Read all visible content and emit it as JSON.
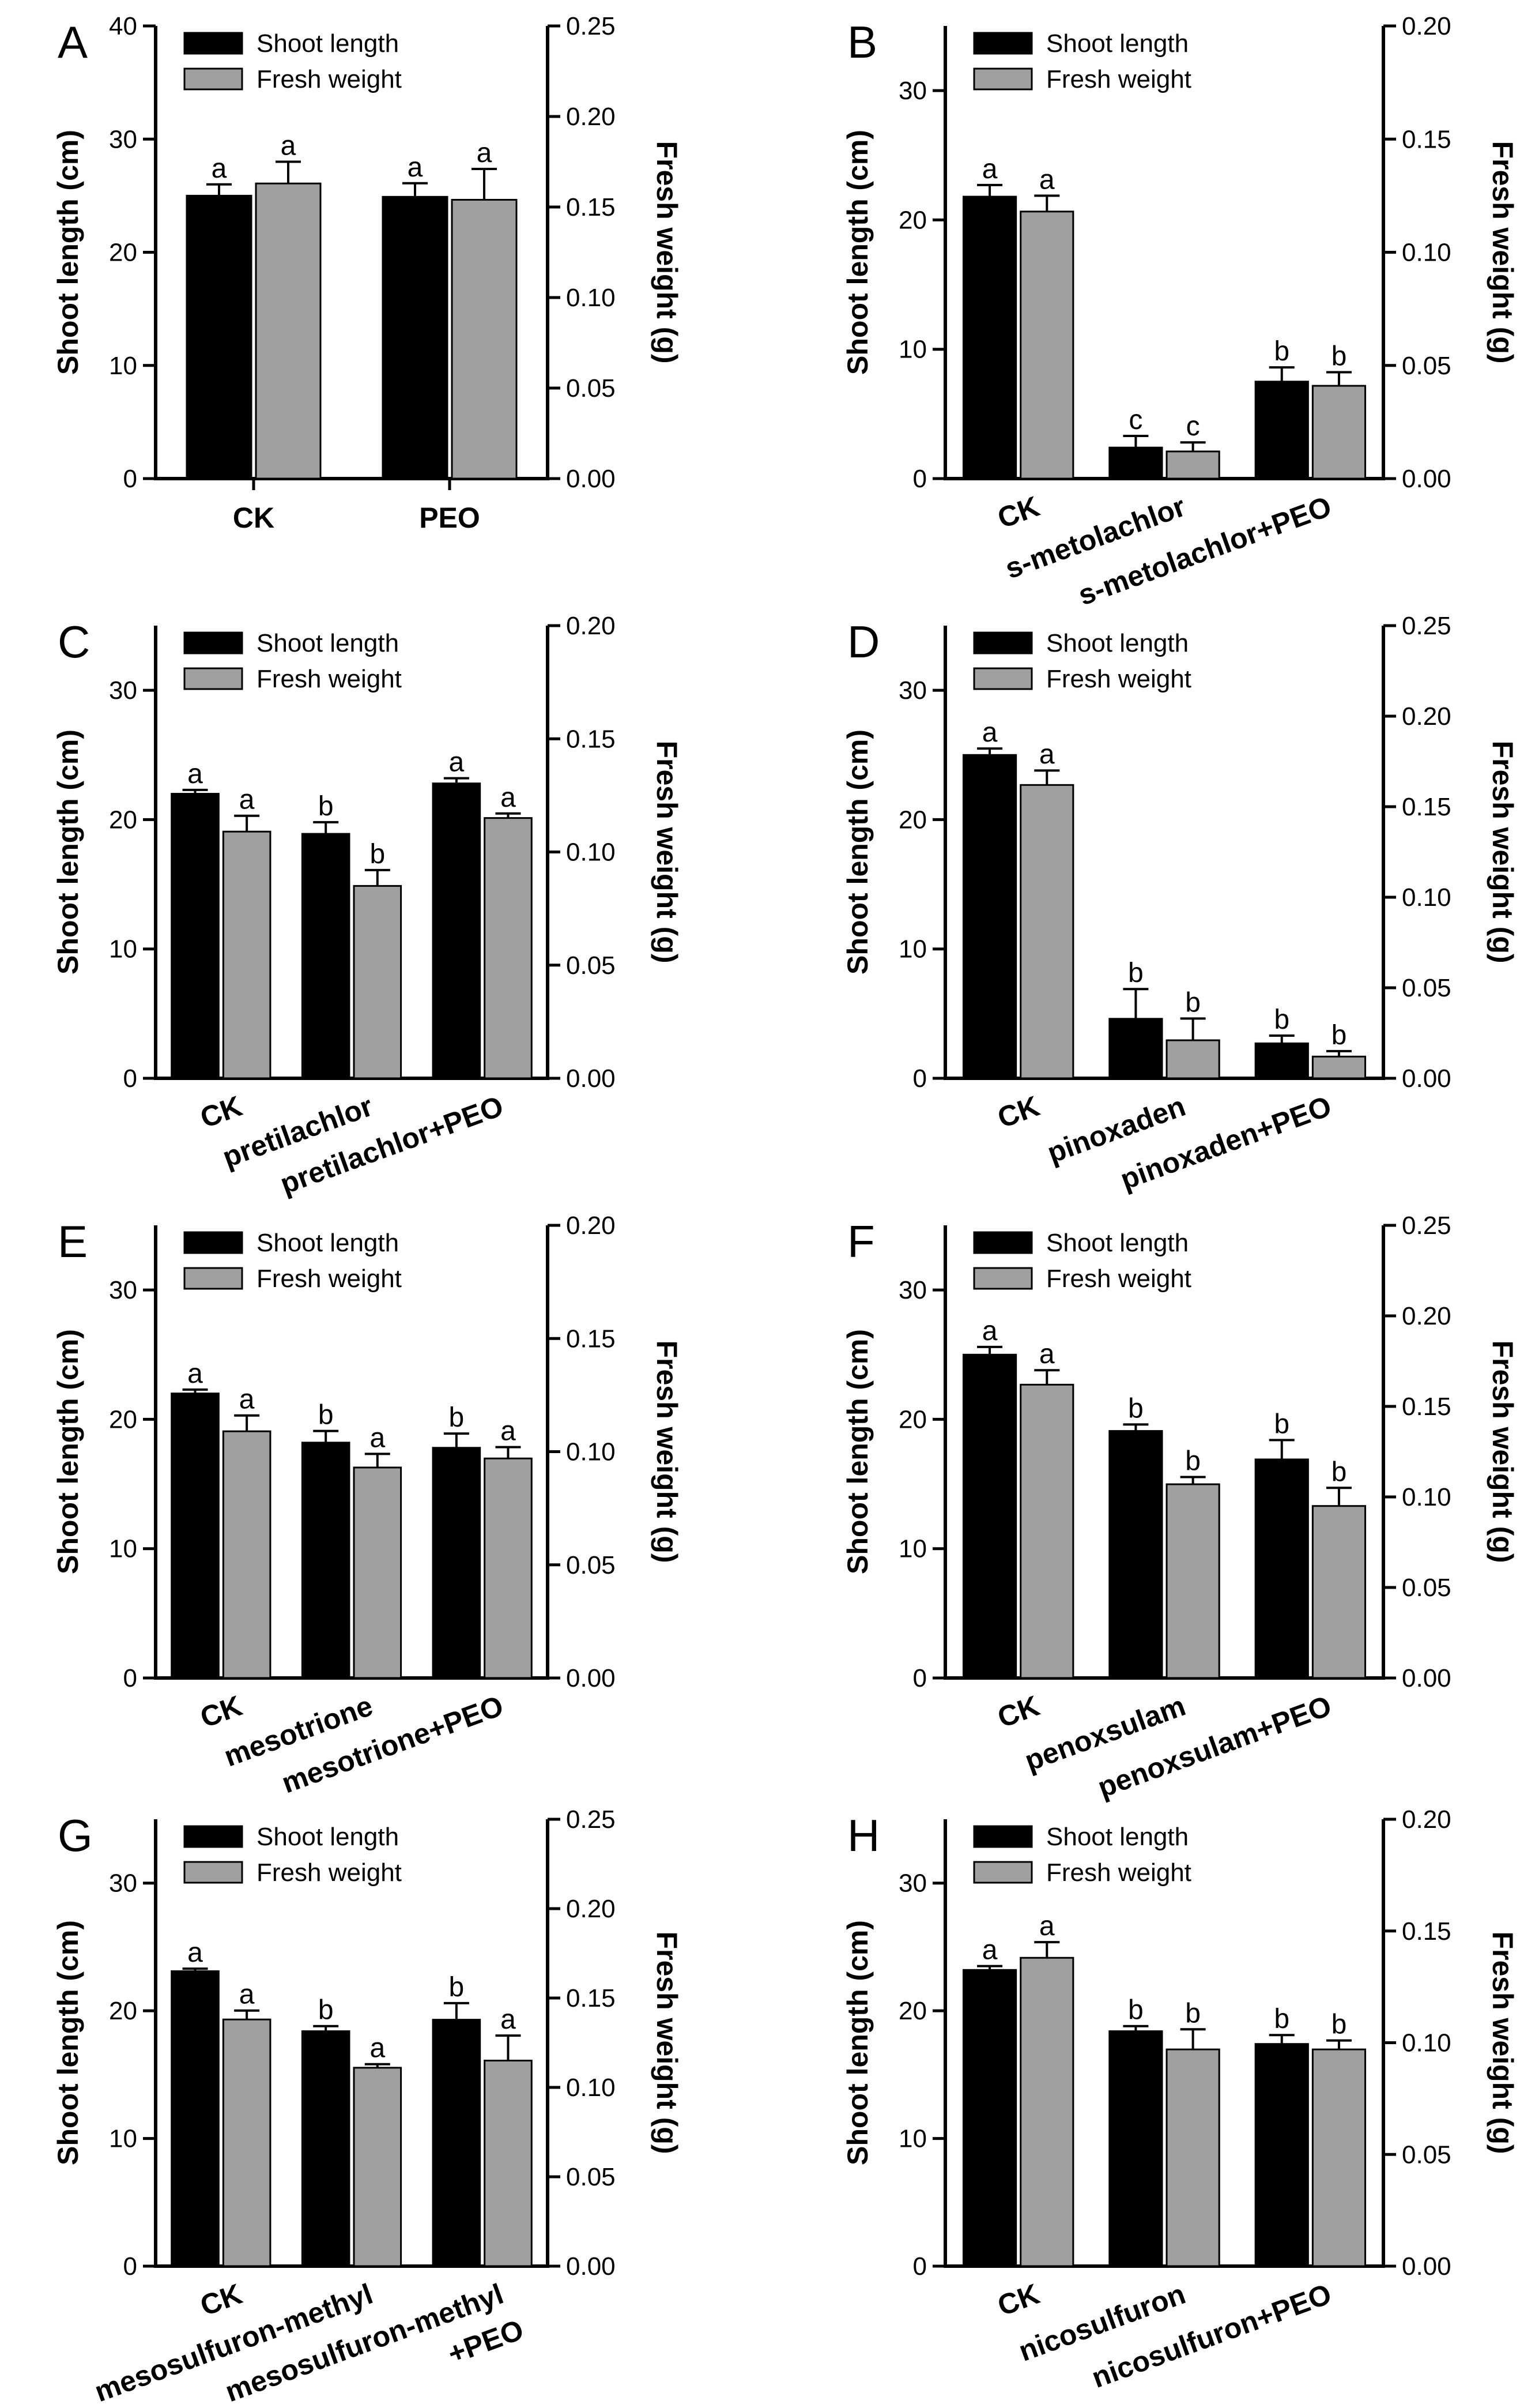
{
  "figure": {
    "legend": {
      "shoot": "Shoot length",
      "fresh": "Fresh weight"
    },
    "colors": {
      "shoot_fill": "#000000",
      "fresh_fill": "#a0a0a0",
      "axis": "#000000"
    }
  },
  "chart_data": [
    {
      "panel": "A",
      "type": "bar",
      "ylabel": "Shoot length (cm)",
      "y2label": "Fresh weight (g)",
      "ylim": [
        0,
        40
      ],
      "y_ticks": [
        0,
        10,
        20,
        30,
        40
      ],
      "y2lim": [
        0,
        0.25
      ],
      "y2_ticks": [
        0,
        0.05,
        0.1,
        0.15,
        0.2,
        0.25
      ],
      "y2_tick_labels": [
        "0.00",
        "0.05",
        "0.10",
        "0.15",
        "0.20",
        "0.25"
      ],
      "rotate_xlabels": false,
      "categories": [
        "CK",
        "PEO"
      ],
      "series": [
        {
          "name": "Shoot length",
          "values": [
            25.0,
            24.9
          ],
          "errors": [
            1.0,
            1.2
          ],
          "letters": [
            "a",
            "a"
          ]
        },
        {
          "name": "Fresh weight",
          "values": [
            0.163,
            0.154
          ],
          "errors": [
            0.012,
            0.017
          ],
          "letters": [
            "a",
            "a"
          ]
        }
      ]
    },
    {
      "panel": "B",
      "type": "bar",
      "ylabel": "Shoot length (cm)",
      "y2label": "Fresh weight (g)",
      "ylim": [
        0,
        35
      ],
      "y_ticks": [
        0,
        10,
        20,
        30
      ],
      "y2lim": [
        0,
        0.2
      ],
      "y2_ticks": [
        0,
        0.05,
        0.1,
        0.15,
        0.2
      ],
      "y2_tick_labels": [
        "0.00",
        "0.05",
        "0.10",
        "0.15",
        "0.20"
      ],
      "rotate_xlabels": true,
      "categories": [
        "CK",
        "s-metolachlor",
        "s-metolachlor+PEO"
      ],
      "series": [
        {
          "name": "Shoot length",
          "values": [
            21.8,
            2.4,
            7.5
          ],
          "errors": [
            0.9,
            0.9,
            1.1
          ],
          "letters": [
            "a",
            "c",
            "b"
          ]
        },
        {
          "name": "Fresh weight",
          "values": [
            0.118,
            0.012,
            0.041
          ],
          "errors": [
            0.007,
            0.004,
            0.006
          ],
          "letters": [
            "a",
            "c",
            "b"
          ]
        }
      ]
    },
    {
      "panel": "C",
      "type": "bar",
      "ylabel": "Shoot length (cm)",
      "y2label": "Fresh weight (g)",
      "ylim": [
        0,
        35
      ],
      "y_ticks": [
        0,
        10,
        20,
        30
      ],
      "y2lim": [
        0,
        0.2
      ],
      "y2_ticks": [
        0,
        0.05,
        0.1,
        0.15,
        0.2
      ],
      "y2_tick_labels": [
        "0.00",
        "0.05",
        "0.10",
        "0.15",
        "0.20"
      ],
      "rotate_xlabels": true,
      "categories": [
        "CK",
        "pretilachlor",
        "pretilachlor+PEO"
      ],
      "series": [
        {
          "name": "Shoot length",
          "values": [
            22.0,
            18.9,
            22.8
          ],
          "errors": [
            0.3,
            0.9,
            0.4
          ],
          "letters": [
            "a",
            "b",
            "a"
          ]
        },
        {
          "name": "Fresh weight",
          "values": [
            0.109,
            0.085,
            0.115
          ],
          "errors": [
            0.007,
            0.007,
            0.002
          ],
          "letters": [
            "a",
            "b",
            "a"
          ]
        }
      ]
    },
    {
      "panel": "D",
      "type": "bar",
      "ylabel": "Shoot length (cm)",
      "y2label": "Fresh weight (g)",
      "ylim": [
        0,
        35
      ],
      "y_ticks": [
        0,
        10,
        20,
        30
      ],
      "y2lim": [
        0,
        0.25
      ],
      "y2_ticks": [
        0,
        0.05,
        0.1,
        0.15,
        0.2,
        0.25
      ],
      "y2_tick_labels": [
        "0.00",
        "0.05",
        "0.10",
        "0.15",
        "0.20",
        "0.25"
      ],
      "rotate_xlabels": true,
      "categories": [
        "CK",
        "pinoxaden",
        "pinoxaden+PEO"
      ],
      "series": [
        {
          "name": "Shoot length",
          "values": [
            25.0,
            4.6,
            2.7
          ],
          "errors": [
            0.5,
            2.3,
            0.6
          ],
          "letters": [
            "a",
            "b",
            "b"
          ]
        },
        {
          "name": "Fresh weight",
          "values": [
            0.162,
            0.021,
            0.012
          ],
          "errors": [
            0.008,
            0.012,
            0.003
          ],
          "letters": [
            "a",
            "b",
            "b"
          ]
        }
      ]
    },
    {
      "panel": "E",
      "type": "bar",
      "ylabel": "Shoot length (cm)",
      "y2label": "Fresh weight (g)",
      "ylim": [
        0,
        35
      ],
      "y_ticks": [
        0,
        10,
        20,
        30
      ],
      "y2lim": [
        0,
        0.2
      ],
      "y2_ticks": [
        0,
        0.05,
        0.1,
        0.15,
        0.2
      ],
      "y2_tick_labels": [
        "0.00",
        "0.05",
        "0.10",
        "0.15",
        "0.20"
      ],
      "rotate_xlabels": true,
      "categories": [
        "CK",
        "mesotrione",
        "mesotrione+PEO"
      ],
      "series": [
        {
          "name": "Shoot length",
          "values": [
            22.0,
            18.2,
            17.8
          ],
          "errors": [
            0.3,
            0.9,
            1.1
          ],
          "letters": [
            "a",
            "b",
            "b"
          ]
        },
        {
          "name": "Fresh weight",
          "values": [
            0.109,
            0.093,
            0.097
          ],
          "errors": [
            0.007,
            0.006,
            0.005
          ],
          "letters": [
            "a",
            "a",
            "a"
          ]
        }
      ]
    },
    {
      "panel": "F",
      "type": "bar",
      "ylabel": "Shoot length (cm)",
      "y2label": "Fresh weight (g)",
      "ylim": [
        0,
        35
      ],
      "y_ticks": [
        0,
        10,
        20,
        30
      ],
      "y2lim": [
        0,
        0.25
      ],
      "y2_ticks": [
        0,
        0.05,
        0.1,
        0.15,
        0.2,
        0.25
      ],
      "y2_tick_labels": [
        "0.00",
        "0.05",
        "0.10",
        "0.15",
        "0.20",
        "0.25"
      ],
      "rotate_xlabels": true,
      "categories": [
        "CK",
        "penoxsulam",
        "penoxsulam+PEO"
      ],
      "series": [
        {
          "name": "Shoot length",
          "values": [
            25.0,
            19.1,
            16.9
          ],
          "errors": [
            0.6,
            0.5,
            1.5
          ],
          "letters": [
            "a",
            "b",
            "b"
          ]
        },
        {
          "name": "Fresh weight",
          "values": [
            0.162,
            0.107,
            0.095
          ],
          "errors": [
            0.008,
            0.004,
            0.01
          ],
          "letters": [
            "a",
            "b",
            "b"
          ]
        }
      ]
    },
    {
      "panel": "G",
      "type": "bar",
      "ylabel": "Shoot length (cm)",
      "y2label": "Fresh weight (g)",
      "ylim": [
        0,
        35
      ],
      "y_ticks": [
        0,
        10,
        20,
        30
      ],
      "y2lim": [
        0,
        0.25
      ],
      "y2_ticks": [
        0,
        0.05,
        0.1,
        0.15,
        0.2,
        0.25
      ],
      "y2_tick_labels": [
        "0.00",
        "0.05",
        "0.10",
        "0.15",
        "0.20",
        "0.25"
      ],
      "rotate_xlabels": true,
      "categories": [
        "CK",
        "mesosulfuron-methyl",
        "mesosulfuron-methyl\n+PEO"
      ],
      "series": [
        {
          "name": "Shoot length",
          "values": [
            23.1,
            18.4,
            19.3
          ],
          "errors": [
            0.2,
            0.4,
            1.3
          ],
          "letters": [
            "a",
            "b",
            "b"
          ]
        },
        {
          "name": "Fresh weight",
          "values": [
            0.138,
            0.111,
            0.115
          ],
          "errors": [
            0.005,
            0.002,
            0.014
          ],
          "letters": [
            "a",
            "a",
            "a"
          ]
        }
      ]
    },
    {
      "panel": "H",
      "type": "bar",
      "ylabel": "Shoot length (cm)",
      "y2label": "Fresh weight (g)",
      "ylim": [
        0,
        35
      ],
      "y_ticks": [
        0,
        10,
        20,
        30
      ],
      "y2lim": [
        0,
        0.2
      ],
      "y2_ticks": [
        0,
        0.05,
        0.1,
        0.15,
        0.2
      ],
      "y2_tick_labels": [
        "0.00",
        "0.05",
        "0.10",
        "0.15",
        "0.20"
      ],
      "rotate_xlabels": true,
      "categories": [
        "CK",
        "nicosulfuron",
        "nicosulfuron+PEO"
      ],
      "series": [
        {
          "name": "Shoot length",
          "values": [
            23.2,
            18.4,
            17.4
          ],
          "errors": [
            0.3,
            0.4,
            0.7
          ],
          "letters": [
            "a",
            "b",
            "b"
          ]
        },
        {
          "name": "Fresh weight",
          "values": [
            0.138,
            0.097,
            0.097
          ],
          "errors": [
            0.007,
            0.009,
            0.004
          ],
          "letters": [
            "a",
            "b",
            "b"
          ]
        }
      ]
    }
  ]
}
